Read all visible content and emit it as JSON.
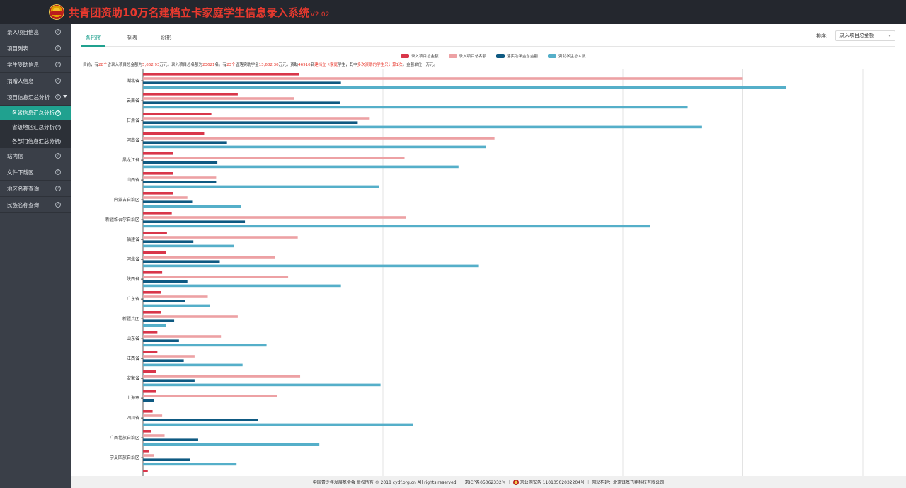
{
  "app": {
    "title": "共青团资助10万名建档立卡家庭学生信息录入系统",
    "version": "V2.02"
  },
  "sidebar": {
    "items": [
      {
        "label": "录入项目信息",
        "type": "item"
      },
      {
        "label": "项目列表",
        "type": "item"
      },
      {
        "label": "学生受助信息",
        "type": "item"
      },
      {
        "label": "捐赠人信息",
        "type": "item"
      },
      {
        "label": "项目信息汇总分析",
        "type": "parent"
      },
      {
        "label": "各省信息汇总分析",
        "type": "sub",
        "active": true
      },
      {
        "label": "省级地区汇总分析",
        "type": "sub"
      },
      {
        "label": "各部门信息汇总分析",
        "type": "sub"
      },
      {
        "label": "站内信",
        "type": "item"
      },
      {
        "label": "文件下载区",
        "type": "item"
      },
      {
        "label": "地区名称查询",
        "type": "item"
      },
      {
        "label": "民族名称查询",
        "type": "item"
      }
    ],
    "help_glyph": "?"
  },
  "tabs": [
    "条形图",
    "列表",
    "树形"
  ],
  "sort": {
    "label": "排序:",
    "value": "录入项目总金额"
  },
  "summary": {
    "p1": "目前，有",
    "provinces": "28个",
    "p2": "省录入项目总金额为",
    "total_amount": "5,662.93",
    "p3": "万元，录入项目总名额为",
    "total_quota": "23621",
    "p4": "名。有",
    "funded_provinces": "23个",
    "p5": "省落实助学金",
    "funded_amount": "13,682.30",
    "p6": "万元，资助",
    "students": "46916",
    "p7": "名",
    "poor_label": "建档立卡家庭",
    "p8": "学生，其中",
    "repeat": "多次资助的学生只计算1次",
    "p9": "。金额单位：万元。"
  },
  "colors": {
    "red": "#d9364a",
    "pink": "#eda1a4",
    "navy": "#0f5a82",
    "teal": "#55afc9",
    "accent": "#20a18f"
  },
  "chart_data": {
    "type": "bar",
    "orientation": "horizontal",
    "legend_position": "top-center",
    "grid": true,
    "categories": [
      "湖北省",
      "云南省",
      "甘肃省",
      "河南省",
      "黑龙江省",
      "山西省",
      "内蒙古自治区",
      "新疆维吾尔自治区",
      "福建省",
      "河北省",
      "陕西省",
      "广东省",
      "新疆兵团",
      "山东省",
      "江西省",
      "安徽省",
      "上海市",
      "四川省",
      "广西壮族自治区",
      "宁夏回族自治区"
    ],
    "series": [
      {
        "name": "录入项目总金额",
        "color": "#d9364a",
        "values": [
          130,
          79,
          57,
          51,
          25,
          25,
          25,
          24,
          20,
          19,
          16,
          15,
          15,
          12,
          12,
          11,
          11,
          8,
          7,
          5
        ]
      },
      {
        "name": "录入项目总名额",
        "color": "#eda1a4",
        "values": [
          500,
          126,
          189,
          293,
          218,
          61,
          37,
          219,
          129,
          110,
          121,
          54,
          79,
          65,
          43,
          131,
          112,
          16,
          18,
          9
        ]
      },
      {
        "name": "落实助学金总金额",
        "color": "#0f5a82",
        "values": [
          165,
          164,
          179,
          70,
          62,
          61,
          41,
          85,
          42,
          64,
          37,
          35,
          26,
          30,
          34,
          43,
          9,
          96,
          46,
          39
        ]
      },
      {
        "name": "资助学生总人数",
        "color": "#55afc9",
        "values": [
          536,
          454,
          466,
          286,
          263,
          197,
          82,
          423,
          76,
          280,
          165,
          56,
          19,
          103,
          83,
          198,
          0,
          225,
          147,
          78
        ]
      }
    ],
    "trailing_partial_value": 4,
    "xlim": [
      0,
      600
    ],
    "grid_step": 100
  },
  "footer": {
    "org": "中国青少年发展基金会 版权所有 © 2018 cydf.org.cn All rights reserved.",
    "icp": "京ICP备05062332号",
    "police": "京公网安备 11010502032204号",
    "builder": "网站构建：北京锋基飞翔科技有限公司"
  }
}
